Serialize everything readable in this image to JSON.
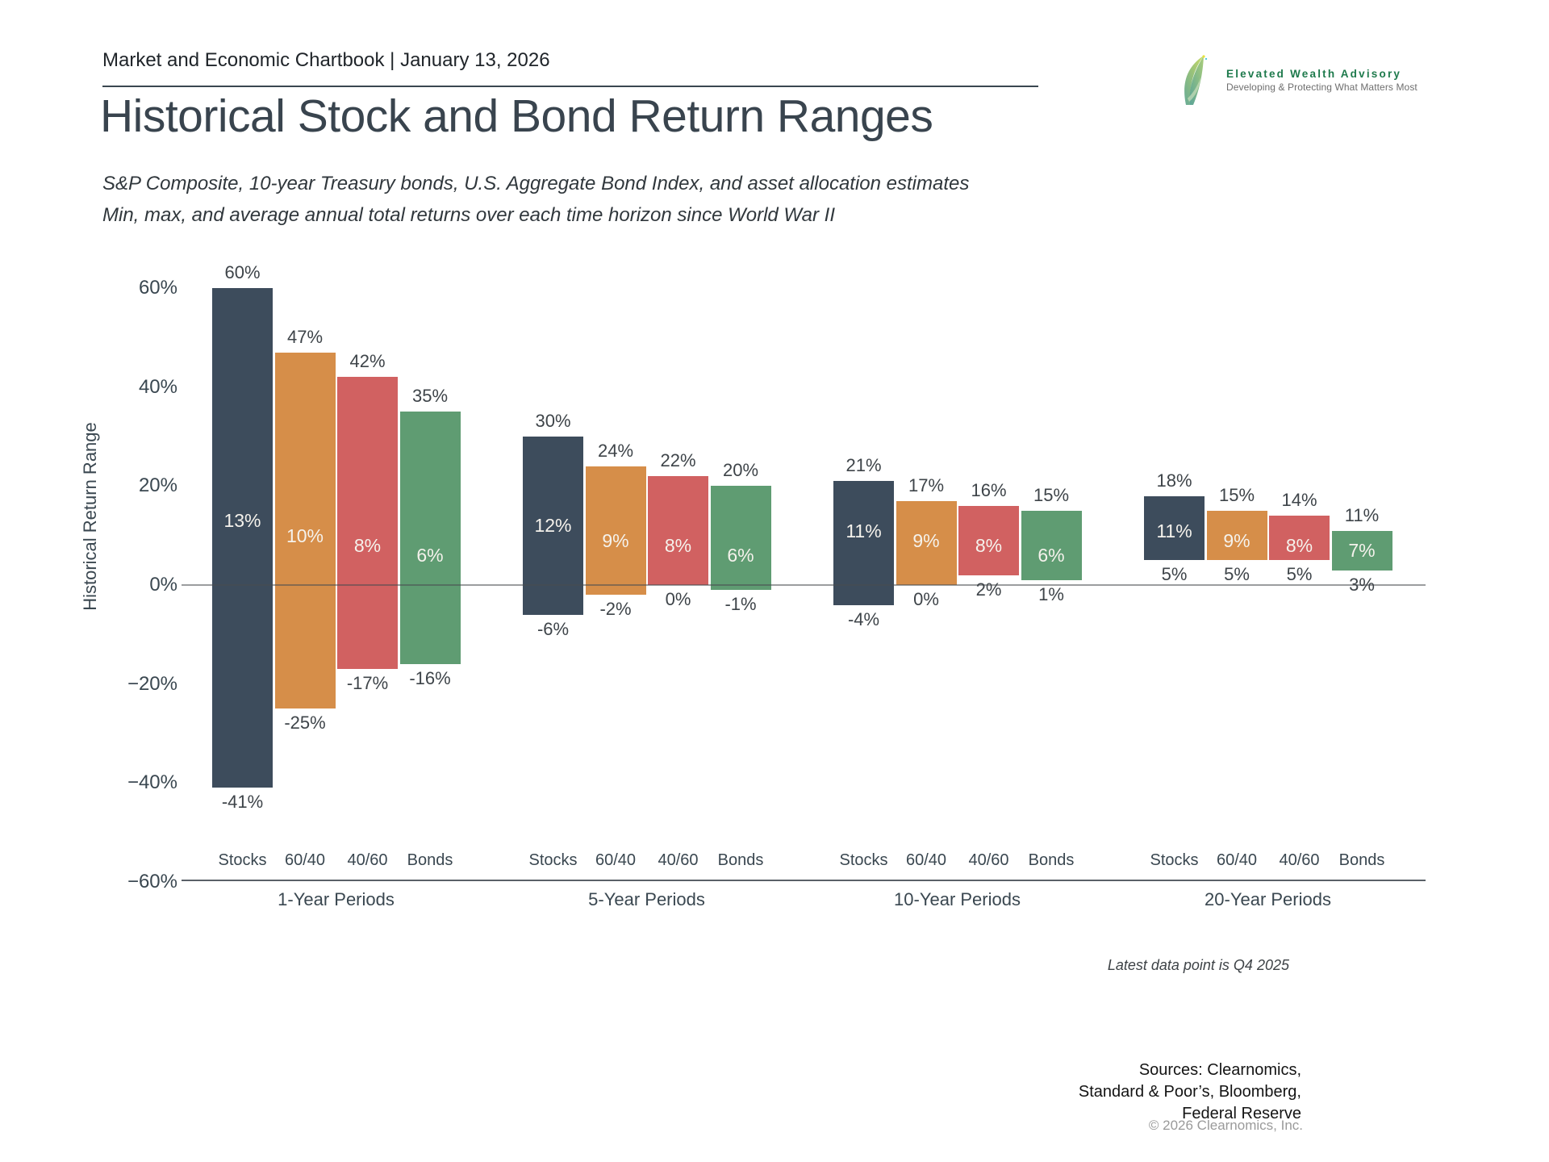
{
  "header": {
    "chartbook_line": "Market and Economic Chartbook | January 13, 2026",
    "logo": {
      "brand": "Elevated Wealth Advisory",
      "tagline": "Developing & Protecting What Matters Most",
      "brand_color": "#1e7a4c"
    }
  },
  "title": "Historical Stock and Bond Return Ranges",
  "subtitle": {
    "line1": "S&P Composite, 10-year Treasury bonds, U.S. Aggregate Bond Index, and asset allocation estimates",
    "line2": "Min, max, and average annual total returns over each time horizon since World War II"
  },
  "chart_data": {
    "type": "bar",
    "subtype": "floating_range_bars",
    "title": "Historical Stock and Bond Return Ranges",
    "ylabel": "Historical Return Range",
    "ylim": [
      -60,
      60
    ],
    "grid": false,
    "yticks": [
      {
        "label": "60%",
        "value": 60
      },
      {
        "label": "40%",
        "value": 40
      },
      {
        "label": "20%",
        "value": 20
      },
      {
        "label": "0%",
        "value": 0
      },
      {
        "label": "−20%",
        "value": -20
      },
      {
        "label": "−40%",
        "value": -40
      },
      {
        "label": "−60%",
        "value": -60
      }
    ],
    "categories": [
      "Stocks",
      "60/40",
      "40/60",
      "Bonds"
    ],
    "series_colors": {
      "Stocks": "#3d4c5c",
      "60/40": "#d68e49",
      "40/60": "#d16161",
      "Bonds": "#5f9c72"
    },
    "groups": [
      {
        "label": "1-Year Periods",
        "bars": [
          {
            "asset": "Stocks",
            "max": 60,
            "avg": 13,
            "min": -41
          },
          {
            "asset": "60/40",
            "max": 47,
            "avg": 10,
            "min": -25
          },
          {
            "asset": "40/60",
            "max": 42,
            "avg": 8,
            "min": -17
          },
          {
            "asset": "Bonds",
            "max": 35,
            "avg": 6,
            "min": -16
          }
        ]
      },
      {
        "label": "5-Year Periods",
        "bars": [
          {
            "asset": "Stocks",
            "max": 30,
            "avg": 12,
            "min": -6
          },
          {
            "asset": "60/40",
            "max": 24,
            "avg": 9,
            "min": -2
          },
          {
            "asset": "40/60",
            "max": 22,
            "avg": 8,
            "min": 0
          },
          {
            "asset": "Bonds",
            "max": 20,
            "avg": 6,
            "min": -1
          }
        ]
      },
      {
        "label": "10-Year Periods",
        "bars": [
          {
            "asset": "Stocks",
            "max": 21,
            "avg": 11,
            "min": -4
          },
          {
            "asset": "60/40",
            "max": 17,
            "avg": 9,
            "min": 0
          },
          {
            "asset": "40/60",
            "max": 16,
            "avg": 8,
            "min": 2
          },
          {
            "asset": "Bonds",
            "max": 15,
            "avg": 6,
            "min": 1
          }
        ]
      },
      {
        "label": "20-Year Periods",
        "bars": [
          {
            "asset": "Stocks",
            "max": 18,
            "avg": 11,
            "min": 5
          },
          {
            "asset": "60/40",
            "max": 15,
            "avg": 9,
            "min": 5
          },
          {
            "asset": "40/60",
            "max": 14,
            "avg": 8,
            "min": 5
          },
          {
            "asset": "Bonds",
            "max": 11,
            "avg": 7,
            "min": 3
          }
        ]
      }
    ]
  },
  "footer": {
    "note": "Latest data point is Q4 2025",
    "sources": [
      "Sources: Clearnomics,",
      "Standard & Poor’s, Bloomberg,",
      "Federal Reserve"
    ],
    "copyright": "© 2026 Clearnomics, Inc."
  }
}
